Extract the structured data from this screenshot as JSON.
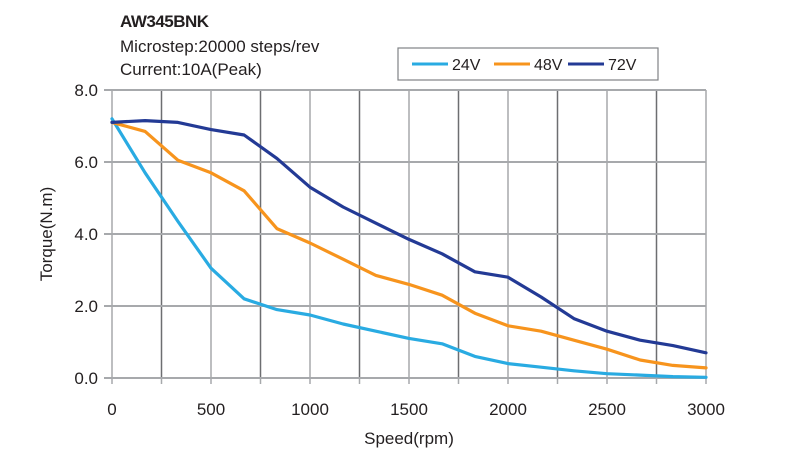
{
  "chart_data": {
    "type": "line",
    "title": "AW345BNK",
    "subtitles": [
      "Microstep:20000 steps/rev",
      "Current:10A(Peak)"
    ],
    "xlabel": "Speed(rpm)",
    "ylabel": "Torque(N.m)",
    "xlim": [
      0,
      3000
    ],
    "ylim": [
      0,
      8
    ],
    "x_ticks": [
      0,
      500,
      1000,
      1500,
      2000,
      2500,
      3000
    ],
    "x_tick_labels": [
      "0",
      "500",
      "1000",
      "1500",
      "2000",
      "2500",
      "3000"
    ],
    "x_grid_step": 250,
    "y_ticks": [
      0,
      2,
      4,
      6,
      8
    ],
    "y_tick_labels": [
      "0.0",
      "2.0",
      "4.0",
      "6.0",
      "8.0"
    ],
    "grid": true,
    "legend_position": "top-right",
    "x": [
      0,
      167,
      333,
      500,
      667,
      833,
      1000,
      1167,
      1333,
      1500,
      1667,
      1833,
      2000,
      2167,
      2333,
      2500,
      2667,
      2833,
      3000
    ],
    "series": [
      {
        "name": "24V",
        "color": "#29abe2",
        "values": [
          7.2,
          5.7,
          4.35,
          3.05,
          2.2,
          1.9,
          1.75,
          1.5,
          1.3,
          1.1,
          0.95,
          0.6,
          0.4,
          0.3,
          0.2,
          0.12,
          0.08,
          0.04,
          0.02
        ]
      },
      {
        "name": "48V",
        "color": "#f7941d",
        "values": [
          7.1,
          6.85,
          6.05,
          5.7,
          5.2,
          4.15,
          3.75,
          3.3,
          2.85,
          2.6,
          2.3,
          1.8,
          1.45,
          1.3,
          1.05,
          0.8,
          0.5,
          0.35,
          0.28
        ]
      },
      {
        "name": "72V",
        "color": "#233a95",
        "values": [
          7.1,
          7.15,
          7.1,
          6.9,
          6.75,
          6.1,
          5.3,
          4.75,
          4.3,
          3.85,
          3.45,
          2.95,
          2.8,
          2.25,
          1.65,
          1.3,
          1.05,
          0.9,
          0.7
        ]
      }
    ]
  }
}
